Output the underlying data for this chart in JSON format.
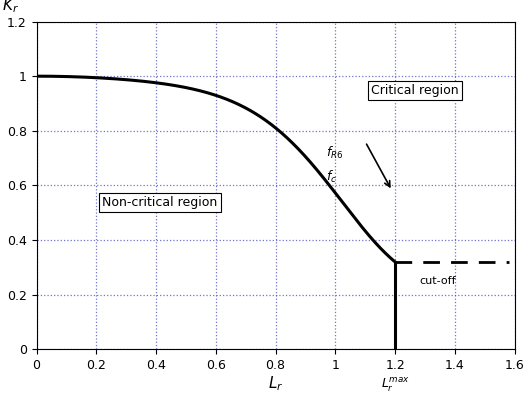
{
  "xlim": [
    0,
    1.6
  ],
  "ylim": [
    0,
    1.2
  ],
  "xticks": [
    0,
    0.2,
    0.4,
    0.6,
    0.8,
    1.0,
    1.2,
    1.4,
    1.6
  ],
  "yticks": [
    0,
    0.2,
    0.4,
    0.6,
    0.8,
    1.0,
    1.2
  ],
  "xtick_labels": [
    "0",
    "0.2",
    "0.4",
    "0.6",
    "0.8",
    "1",
    "1.2",
    "1.4",
    "1.6"
  ],
  "ytick_labels": [
    "0",
    "0.2",
    "0.4",
    "0.6",
    "0.8",
    "1",
    "1.2"
  ],
  "xlabel": "$L_r$",
  "ylabel": "$K_r$",
  "Lrmax": 1.2,
  "curve_color": "#000000",
  "grid_color": "#4444bb",
  "background_color": "#ffffff",
  "critical_label": "Critical region",
  "noncritical_label": "Non-critical region",
  "fR6_label": "$f_{R6}$",
  "fc_label": "$f_c$",
  "cutoff_label": "cut-off",
  "Lrmax_label": "$L_r^{max}$",
  "figwidth": 5.3,
  "figheight": 3.99,
  "dpi": 100
}
